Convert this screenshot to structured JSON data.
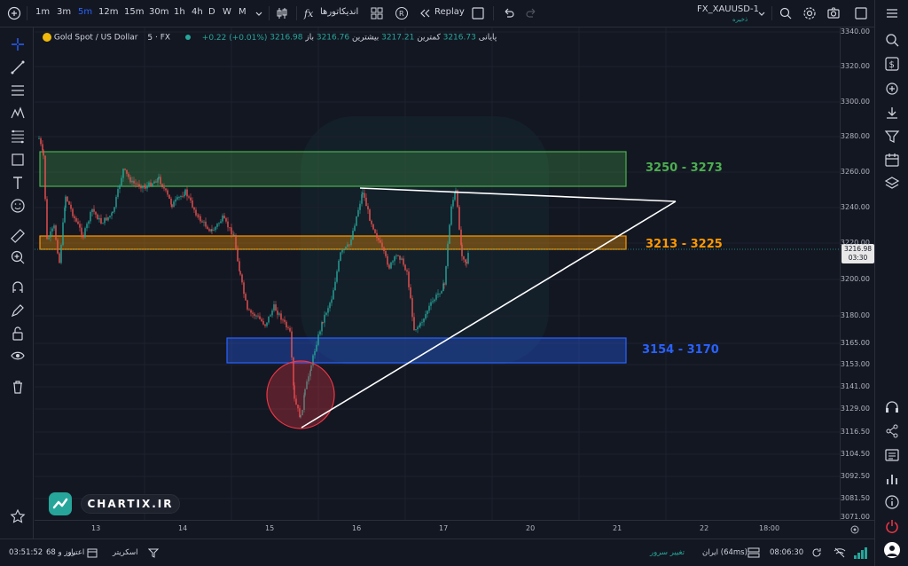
{
  "topbar": {
    "timeframes": [
      "1m",
      "3m",
      "5m",
      "12m",
      "15m",
      "30m",
      "1h",
      "4h",
      "D",
      "W",
      "M"
    ],
    "active_timeframe": "5m",
    "indicators_label": "اندیکاتورها",
    "replay_label": "Replay",
    "symbol": "FX_XAUUSD-1",
    "save_label": "ذخیره"
  },
  "legend": {
    "title": "Gold Spot / US Dollar",
    "interval": "5",
    "exchange": "FX",
    "open_label": "باز",
    "open_value": "3216.76",
    "high_label": "بیشترین",
    "high_value": "3217.21",
    "low_label": "کمترین",
    "low_value": "3216.73",
    "close_label": "پایانی",
    "close_value": "3216.98",
    "change_value": "+0.22 (+0.01%)"
  },
  "price_axis": {
    "ticks": [
      "3340.00",
      "3320.00",
      "3300.00",
      "3280.00",
      "3260.00",
      "3240.00",
      "3220.00",
      "3200.00",
      "3180.00",
      "3165.00",
      "3153.00",
      "3141.00",
      "3129.00",
      "3116.50",
      "3104.50",
      "3092.50",
      "3081.50",
      "3071.00"
    ],
    "current_price": "3216.98",
    "countdown": "03:30"
  },
  "time_axis": {
    "ticks": [
      "13",
      "14",
      "15",
      "16",
      "17",
      "20",
      "21",
      "22",
      "18:00"
    ]
  },
  "zones": {
    "green_label": "3250 - 3273",
    "orange_label": "3213 - 3225",
    "blue_label": "3154 - 3170"
  },
  "colors": {
    "green_zone": "#4caf50",
    "orange_zone": "#ff9800",
    "blue_zone": "#2962ff",
    "circle": "#f23645",
    "up": "#26a69a",
    "down": "#ef5350"
  },
  "logo": {
    "text": "CHARTIX.IR"
  },
  "bottombar": {
    "time": "03:51:52",
    "credit_label": "اعتبار",
    "credit_value": "68 روز و",
    "screener_label": "اسکریتر",
    "server_change_label": "تغییر سرور",
    "server_info": "ایران (64ms)",
    "clock": "08:06:30"
  }
}
